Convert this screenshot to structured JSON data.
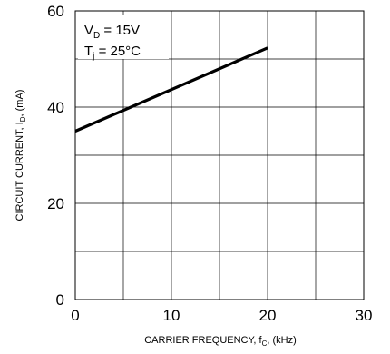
{
  "chart_data": {
    "type": "line",
    "title": "",
    "xlabel": {
      "prefix": "CARRIER FREQUENCY, f",
      "subscript": "C",
      "suffix": ", (kHz)"
    },
    "ylabel": {
      "prefix": "CIRCUIT CURRENT, I",
      "subscript": "D",
      "suffix": ", (mA)"
    },
    "xlim": [
      0,
      30
    ],
    "ylim": [
      0,
      60
    ],
    "x_ticks": [
      "0",
      "10",
      "20",
      "30"
    ],
    "y_ticks": [
      "0",
      "20",
      "40",
      "60"
    ],
    "grid": true,
    "legend": "none",
    "series": [
      {
        "x": [
          0,
          20
        ],
        "y": [
          35,
          52.3
        ],
        "color": "#000000"
      }
    ],
    "annotations": [
      {
        "prefix": "V",
        "subscript": "D",
        "suffix": " = 15V"
      },
      {
        "prefix": "T",
        "subscript": "j",
        "suffix": " = 25°C"
      }
    ]
  }
}
